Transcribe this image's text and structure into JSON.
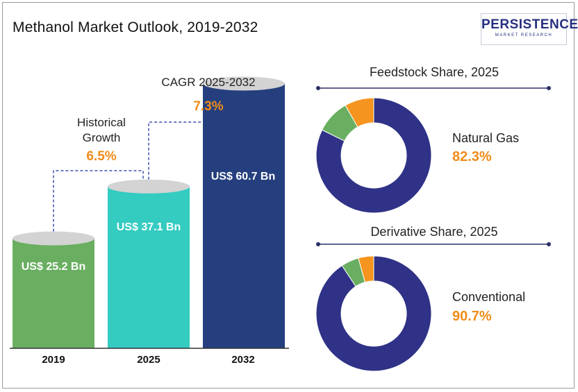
{
  "title": "Methanol Market Outlook, 2019-2032",
  "logo": {
    "name": "PERSISTENCE",
    "tagline": "MARKET RESEARCH"
  },
  "annotations": {
    "historical": {
      "label": "Historical Growth",
      "value": "6.5%"
    },
    "cagr": {
      "label": "CAGR 2025-2032",
      "value": "7.3%"
    }
  },
  "colors": {
    "bar_2019": "#6aaf61",
    "bar_2025": "#34cbc1",
    "bar_2032": "#253f7e",
    "accent": "#f08c1a",
    "donut_main": "#2f3286",
    "donut_green": "#6aaf61",
    "donut_orange": "#f5951f"
  },
  "chart_data": [
    {
      "type": "bar",
      "title": "Methanol Market Outlook, 2019-2032",
      "categories": [
        "2019",
        "2025",
        "2032"
      ],
      "values": [
        25.2,
        37.1,
        60.7
      ],
      "value_labels": [
        "US$ 25.2 Bn",
        "US$ 37.1 Bn",
        "US$ 60.7 Bn"
      ],
      "xlabel": "",
      "ylabel": "",
      "ylim": [
        0,
        70
      ],
      "grid": false
    },
    {
      "type": "pie",
      "title": "Feedstock Share, 2025",
      "highlight": {
        "label": "Natural Gas",
        "value": "82.3%"
      },
      "values": [
        82.3,
        9.5,
        8.2
      ]
    },
    {
      "type": "pie",
      "title": "Derivative Share, 2025",
      "highlight": {
        "label": "Conventional",
        "value": "90.7%"
      },
      "values": [
        90.7,
        5.0,
        4.3
      ]
    }
  ]
}
